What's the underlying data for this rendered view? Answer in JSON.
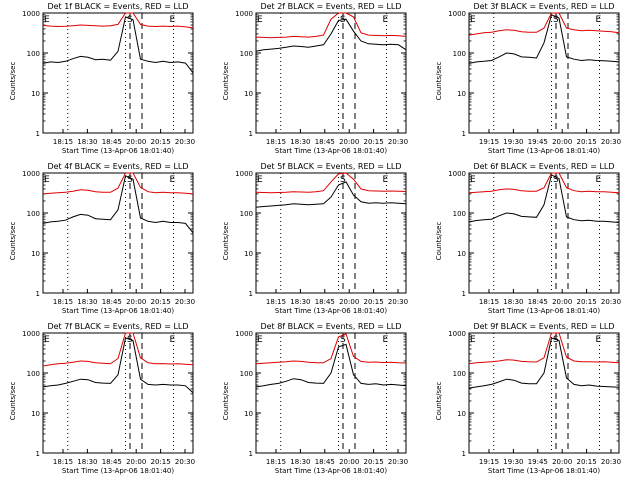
{
  "figure": {
    "start_time_label": "Start Time (13-Apr-06 18:01:40)",
    "ylabel": "Counts/sec",
    "colors": {
      "events": "#000000",
      "lld": "#e00000",
      "axes": "#000000"
    }
  },
  "chart_data": [
    {
      "type": "line",
      "title": "Det 1f BLACK = Events, RED = LLD",
      "xlabel": "Start Time (13-Apr-06 18:01:40)",
      "ylabel": "Counts/sec",
      "y_scale": "log",
      "ylim": [
        1,
        1000
      ],
      "yticks": [
        "1",
        "10",
        "100",
        "1000"
      ],
      "xticks": [
        "18:15",
        "18:30",
        "18:45",
        "20:00",
        "20:15",
        "20:30"
      ],
      "markers": {
        "E": "E",
        "S": "S"
      },
      "series": [
        {
          "name": "Events",
          "color": "#000000",
          "x": [
            0,
            1,
            2,
            3,
            4,
            5,
            6,
            7,
            8,
            9,
            10,
            11,
            12,
            13,
            14,
            15,
            16,
            17,
            18,
            19,
            20
          ],
          "y": [
            55,
            60,
            58,
            62,
            72,
            82,
            78,
            68,
            70,
            66,
            110,
            800,
            680,
            70,
            62,
            58,
            62,
            58,
            60,
            56,
            32
          ]
        },
        {
          "name": "LLD",
          "color": "#e00000",
          "x": [
            0,
            1,
            2,
            3,
            4,
            5,
            6,
            7,
            8,
            9,
            10,
            11,
            12,
            13,
            14,
            15,
            16,
            17,
            18,
            19,
            20
          ],
          "y": [
            490,
            470,
            460,
            465,
            480,
            500,
            490,
            480,
            470,
            480,
            520,
            1000,
            1000,
            520,
            470,
            460,
            470,
            460,
            470,
            450,
            430
          ]
        }
      ]
    },
    {
      "type": "line",
      "title": "Det 2f BLACK = Events, RED = LLD",
      "xlabel": "Start Time (13-Apr-06 18:01:40)",
      "ylabel": "Counts/sec",
      "y_scale": "log",
      "ylim": [
        1,
        1000
      ],
      "yticks": [
        "1",
        "10",
        "100",
        "1000"
      ],
      "xticks": [
        "18:15",
        "18:30",
        "18:45",
        "20:00",
        "20:15",
        "20:30"
      ],
      "markers": {
        "E": "E",
        "S": "S"
      },
      "series": [
        {
          "name": "Events",
          "color": "#000000",
          "x": [
            0,
            1,
            2,
            3,
            4,
            5,
            6,
            7,
            8,
            9,
            10,
            11,
            12,
            13,
            14,
            15,
            16,
            17,
            18,
            19,
            20
          ],
          "y": [
            110,
            120,
            125,
            130,
            140,
            150,
            145,
            140,
            150,
            160,
            300,
            650,
            700,
            350,
            200,
            170,
            165,
            160,
            165,
            160,
            120
          ]
        },
        {
          "name": "LLD",
          "color": "#e00000",
          "x": [
            0,
            1,
            2,
            3,
            4,
            5,
            6,
            7,
            8,
            9,
            10,
            11,
            12,
            13,
            14,
            15,
            16,
            17,
            18,
            19,
            20
          ],
          "y": [
            250,
            245,
            240,
            245,
            250,
            260,
            255,
            250,
            260,
            280,
            700,
            1000,
            1000,
            800,
            320,
            280,
            275,
            270,
            275,
            270,
            260
          ]
        }
      ]
    },
    {
      "type": "line",
      "title": "Det 3f BLACK = Events, RED = LLD",
      "xlabel": "Start Time (13-Apr-06 18:01:40)",
      "ylabel": "Counts/sec",
      "y_scale": "log",
      "ylim": [
        1,
        1000
      ],
      "yticks": [
        "1",
        "10",
        "100",
        "1000"
      ],
      "xticks": [
        "19:15",
        "19:30",
        "19:45",
        "20:00",
        "20:15",
        "20:30"
      ],
      "markers": {
        "E": "E",
        "S": "S"
      },
      "series": [
        {
          "name": "Events",
          "color": "#000000",
          "x": [
            0,
            1,
            2,
            3,
            4,
            5,
            6,
            7,
            8,
            9,
            10,
            11,
            12,
            13,
            14,
            15,
            16,
            17,
            18,
            19,
            20
          ],
          "y": [
            55,
            60,
            62,
            65,
            80,
            100,
            95,
            80,
            78,
            75,
            180,
            900,
            750,
            80,
            70,
            65,
            68,
            65,
            64,
            62,
            60
          ]
        },
        {
          "name": "LLD",
          "color": "#e00000",
          "x": [
            0,
            1,
            2,
            3,
            4,
            5,
            6,
            7,
            8,
            9,
            10,
            11,
            12,
            13,
            14,
            15,
            16,
            17,
            18,
            19,
            20
          ],
          "y": [
            280,
            300,
            320,
            330,
            360,
            380,
            370,
            340,
            330,
            330,
            420,
            1000,
            1000,
            420,
            380,
            360,
            370,
            360,
            350,
            340,
            320
          ]
        }
      ]
    },
    {
      "type": "line",
      "title": "Det 4f BLACK = Events, RED = LLD",
      "xlabel": "Start Time (13-Apr-06 18:01:40)",
      "ylabel": "Counts/sec",
      "y_scale": "log",
      "ylim": [
        1,
        1000
      ],
      "yticks": [
        "1",
        "10",
        "100",
        "1000"
      ],
      "xticks": [
        "18:15",
        "18:30",
        "18:45",
        "20:00",
        "20:15",
        "20:30"
      ],
      "markers": {
        "E": "E",
        "S": "S"
      },
      "series": [
        {
          "name": "Events",
          "color": "#000000",
          "x": [
            0,
            1,
            2,
            3,
            4,
            5,
            6,
            7,
            8,
            9,
            10,
            11,
            12,
            13,
            14,
            15,
            16,
            17,
            18,
            19,
            20
          ],
          "y": [
            55,
            60,
            62,
            66,
            80,
            92,
            88,
            72,
            70,
            68,
            120,
            850,
            700,
            75,
            62,
            58,
            62,
            58,
            58,
            55,
            32
          ]
        },
        {
          "name": "LLD",
          "color": "#e00000",
          "x": [
            0,
            1,
            2,
            3,
            4,
            5,
            6,
            7,
            8,
            9,
            10,
            11,
            12,
            13,
            14,
            15,
            16,
            17,
            18,
            19,
            20
          ],
          "y": [
            300,
            310,
            320,
            330,
            350,
            380,
            370,
            340,
            330,
            330,
            420,
            1000,
            1000,
            440,
            340,
            320,
            330,
            320,
            320,
            310,
            300
          ]
        }
      ]
    },
    {
      "type": "line",
      "title": "Det 5f BLACK = Events, RED = LLD",
      "xlabel": "Start Time (13-Apr-06 18:01:40)",
      "ylabel": "Counts/sec",
      "y_scale": "log",
      "ylim": [
        1,
        1000
      ],
      "yticks": [
        "1",
        "10",
        "100",
        "1000"
      ],
      "xticks": [
        "18:15",
        "18:30",
        "18:45",
        "20:00",
        "20:15",
        "20:30"
      ],
      "markers": {
        "E": "E",
        "S": "S"
      },
      "series": [
        {
          "name": "Events",
          "color": "#000000",
          "x": [
            0,
            1,
            2,
            3,
            4,
            5,
            6,
            7,
            8,
            9,
            10,
            11,
            12,
            13,
            14,
            15,
            16,
            17,
            18,
            19,
            20
          ],
          "y": [
            140,
            145,
            150,
            155,
            160,
            170,
            165,
            160,
            165,
            170,
            250,
            500,
            600,
            280,
            190,
            175,
            180,
            175,
            180,
            175,
            170
          ]
        },
        {
          "name": "LLD",
          "color": "#e00000",
          "x": [
            0,
            1,
            2,
            3,
            4,
            5,
            6,
            7,
            8,
            9,
            10,
            11,
            12,
            13,
            14,
            15,
            16,
            17,
            18,
            19,
            20
          ],
          "y": [
            330,
            325,
            320,
            325,
            330,
            340,
            335,
            330,
            340,
            360,
            600,
            950,
            1000,
            700,
            400,
            360,
            355,
            350,
            355,
            350,
            345
          ]
        }
      ]
    },
    {
      "type": "line",
      "title": "Det 6f BLACK = Events, RED = LLD",
      "xlabel": "Start Time (13-Apr-06 18:01:40)",
      "ylabel": "Counts/sec",
      "y_scale": "log",
      "ylim": [
        1,
        1000
      ],
      "yticks": [
        "1",
        "10",
        "100",
        "1000"
      ],
      "xticks": [
        "18:15",
        "18:30",
        "18:45",
        "20:00",
        "20:15",
        "20:30"
      ],
      "markers": {
        "E": "E",
        "S": "S"
      },
      "series": [
        {
          "name": "Events",
          "color": "#000000",
          "x": [
            0,
            1,
            2,
            3,
            4,
            5,
            6,
            7,
            8,
            9,
            10,
            11,
            12,
            13,
            14,
            15,
            16,
            17,
            18,
            19,
            20
          ],
          "y": [
            60,
            65,
            68,
            70,
            85,
            100,
            95,
            82,
            80,
            78,
            160,
            900,
            720,
            80,
            68,
            64,
            66,
            62,
            62,
            60,
            58
          ]
        },
        {
          "name": "LLD",
          "color": "#e00000",
          "x": [
            0,
            1,
            2,
            3,
            4,
            5,
            6,
            7,
            8,
            9,
            10,
            11,
            12,
            13,
            14,
            15,
            16,
            17,
            18,
            19,
            20
          ],
          "y": [
            320,
            330,
            340,
            350,
            380,
            400,
            390,
            360,
            350,
            350,
            430,
            1000,
            1000,
            430,
            360,
            340,
            350,
            340,
            340,
            330,
            320
          ]
        }
      ]
    },
    {
      "type": "line",
      "title": "Det 7f BLACK = Events, RED = LLD",
      "xlabel": "Start Time (13-Apr-06 18:01:40)",
      "ylabel": "Counts/sec",
      "y_scale": "log",
      "ylim": [
        1,
        1000
      ],
      "yticks": [
        "1",
        "10",
        "100",
        "1000"
      ],
      "xticks": [
        "18:15",
        "18:30",
        "18:45",
        "20:00",
        "20:15",
        "20:30"
      ],
      "markers": {
        "E": "E",
        "S": "S"
      },
      "series": [
        {
          "name": "Events",
          "color": "#000000",
          "x": [
            0,
            1,
            2,
            3,
            4,
            5,
            6,
            7,
            8,
            9,
            10,
            11,
            12,
            13,
            14,
            15,
            16,
            17,
            18,
            19,
            20
          ],
          "y": [
            45,
            48,
            50,
            55,
            62,
            70,
            68,
            58,
            56,
            55,
            90,
            750,
            650,
            70,
            52,
            50,
            52,
            50,
            50,
            48,
            32
          ]
        },
        {
          "name": "LLD",
          "color": "#e00000",
          "x": [
            0,
            1,
            2,
            3,
            4,
            5,
            6,
            7,
            8,
            9,
            10,
            11,
            12,
            13,
            14,
            15,
            16,
            17,
            18,
            19,
            20
          ],
          "y": [
            150,
            160,
            170,
            175,
            185,
            200,
            195,
            180,
            175,
            170,
            230,
            1000,
            1000,
            240,
            180,
            170,
            172,
            168,
            170,
            165,
            160
          ]
        }
      ]
    },
    {
      "type": "line",
      "title": "Det 8f BLACK = Events, RED = LLD",
      "xlabel": "Start Time (13-Apr-06 18:01:40)",
      "ylabel": "Counts/sec",
      "y_scale": "log",
      "ylim": [
        1,
        1000
      ],
      "yticks": [
        "1",
        "10",
        "100",
        "1000"
      ],
      "xticks": [
        "18:15",
        "18:30",
        "18:45",
        "20:00",
        "20:15",
        "20:30"
      ],
      "markers": {
        "E": "E",
        "S": "S"
      },
      "series": [
        {
          "name": "Events",
          "color": "#000000",
          "x": [
            0,
            1,
            2,
            3,
            4,
            5,
            6,
            7,
            8,
            9,
            10,
            11,
            12,
            13,
            14,
            15,
            16,
            17,
            18,
            19,
            20
          ],
          "y": [
            45,
            48,
            52,
            55,
            62,
            72,
            68,
            58,
            56,
            55,
            100,
            450,
            520,
            90,
            55,
            52,
            54,
            50,
            52,
            50,
            48
          ]
        },
        {
          "name": "LLD",
          "color": "#e00000",
          "x": [
            0,
            1,
            2,
            3,
            4,
            5,
            6,
            7,
            8,
            9,
            10,
            11,
            12,
            13,
            14,
            15,
            16,
            17,
            18,
            19,
            20
          ],
          "y": [
            170,
            175,
            180,
            185,
            190,
            200,
            195,
            185,
            180,
            180,
            230,
            800,
            950,
            260,
            195,
            185,
            188,
            182,
            185,
            180,
            178
          ]
        }
      ]
    },
    {
      "type": "line",
      "title": "Det 9f BLACK = Events, RED = LLD",
      "xlabel": "Start Time (13-Apr-06 18:01:40)",
      "ylabel": "Counts/sec",
      "y_scale": "log",
      "ylim": [
        1,
        1000
      ],
      "yticks": [
        "1",
        "10",
        "100",
        "1000"
      ],
      "xticks": [
        "19:15",
        "19:30",
        "19:45",
        "20:00",
        "20:15",
        "20:30"
      ],
      "markers": {
        "E": "E",
        "S": "S"
      },
      "series": [
        {
          "name": "Events",
          "color": "#000000",
          "x": [
            0,
            1,
            2,
            3,
            4,
            5,
            6,
            7,
            8,
            9,
            10,
            11,
            12,
            13,
            14,
            15,
            16,
            17,
            18,
            19,
            20
          ],
          "y": [
            42,
            45,
            48,
            52,
            60,
            70,
            66,
            56,
            54,
            54,
            100,
            750,
            650,
            75,
            52,
            48,
            50,
            47,
            46,
            45,
            44
          ]
        },
        {
          "name": "LLD",
          "color": "#e00000",
          "x": [
            0,
            1,
            2,
            3,
            4,
            5,
            6,
            7,
            8,
            9,
            10,
            11,
            12,
            13,
            14,
            15,
            16,
            17,
            18,
            19,
            20
          ],
          "y": [
            170,
            180,
            185,
            190,
            200,
            215,
            210,
            195,
            190,
            188,
            240,
            1000,
            1000,
            250,
            200,
            190,
            192,
            188,
            190,
            185,
            180
          ]
        }
      ]
    }
  ]
}
